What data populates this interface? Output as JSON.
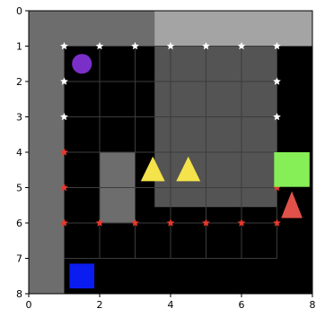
{
  "grid": {
    "cols": 8,
    "rows": 8,
    "x_ticks": [
      "0",
      "2",
      "4",
      "6",
      "8"
    ],
    "y_ticks": [
      "0",
      "1",
      "2",
      "3",
      "4",
      "5",
      "6",
      "7",
      "8"
    ]
  },
  "colors": {
    "wall": "#6d6d6d",
    "floor": "#000000",
    "light_region": "#a4a4a4",
    "grid_line": "#3c3c3c",
    "white_star": "#ffffff",
    "red_star": "#e8382d",
    "agent": "#7b2fc9",
    "goal": "#0a1cf0",
    "triangle": "#f4e34a",
    "red_triangle": "#e0514a",
    "green_square": "#86ef57"
  },
  "floor_cells": [
    [
      1,
      1
    ],
    [
      2,
      1
    ],
    [
      3,
      1
    ],
    [
      4,
      1
    ],
    [
      5,
      1
    ],
    [
      6,
      1
    ],
    [
      7,
      1
    ],
    [
      1,
      2
    ],
    [
      2,
      2
    ],
    [
      3,
      2
    ],
    [
      4,
      2
    ],
    [
      5,
      2
    ],
    [
      6,
      2
    ],
    [
      7,
      2
    ],
    [
      1,
      3
    ],
    [
      2,
      3
    ],
    [
      3,
      3
    ],
    [
      4,
      3
    ],
    [
      5,
      3
    ],
    [
      6,
      3
    ],
    [
      7,
      3
    ],
    [
      1,
      4
    ],
    [
      3,
      4
    ],
    [
      4,
      4
    ],
    [
      5,
      4
    ],
    [
      6,
      4
    ],
    [
      7,
      4
    ],
    [
      1,
      5
    ],
    [
      3,
      5
    ],
    [
      4,
      5
    ],
    [
      5,
      5
    ],
    [
      6,
      5
    ],
    [
      7,
      5
    ],
    [
      1,
      6
    ],
    [
      2,
      6
    ],
    [
      3,
      6
    ],
    [
      4,
      6
    ],
    [
      5,
      6
    ],
    [
      6,
      6
    ],
    [
      7,
      6
    ],
    [
      1,
      7
    ],
    [
      2,
      7
    ],
    [
      3,
      7
    ],
    [
      4,
      7
    ],
    [
      5,
      7
    ],
    [
      6,
      7
    ],
    [
      7,
      7
    ]
  ],
  "white_stars": [
    [
      1,
      1
    ],
    [
      2,
      1
    ],
    [
      3,
      1
    ],
    [
      4,
      1
    ],
    [
      5,
      1
    ],
    [
      6,
      1
    ],
    [
      7,
      1
    ],
    [
      1,
      2
    ],
    [
      7,
      2
    ],
    [
      1,
      3
    ],
    [
      7,
      3
    ]
  ],
  "red_stars": [
    [
      1,
      4
    ],
    [
      1,
      5
    ],
    [
      7,
      5
    ],
    [
      1,
      6
    ],
    [
      2,
      6
    ],
    [
      3,
      6
    ],
    [
      4,
      6
    ],
    [
      5,
      6
    ],
    [
      6,
      6
    ],
    [
      7,
      6
    ]
  ],
  "agent_cell": [
    1,
    1
  ],
  "goal_cell": [
    1,
    7
  ],
  "yellow_triangles": [
    [
      3,
      4
    ],
    [
      4,
      4
    ]
  ],
  "red_triangle_cell": [
    7,
    5
  ],
  "green_square_cell": [
    7,
    4
  ]
}
